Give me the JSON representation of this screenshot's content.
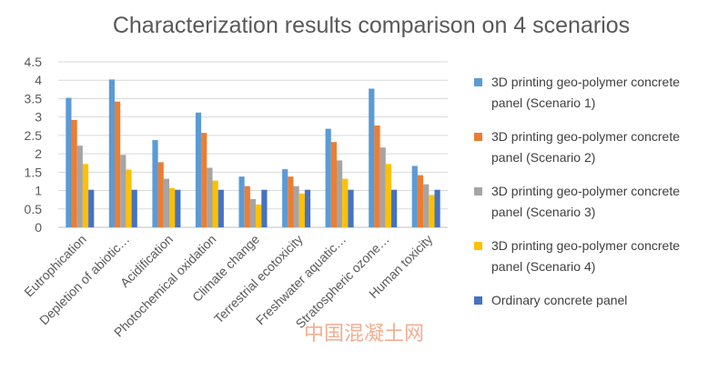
{
  "chart_data": {
    "type": "bar",
    "title": "Characterization results comparison on 4 scenarios",
    "categories": [
      "Eutrophication",
      "Depletion of abiotic…",
      "Acidification",
      "Photochemical oxidation",
      "Climate change",
      "Terrestrial ecotoxicity",
      "Freshwater aquatic…",
      "Stratospheric ozone…",
      "Human toxicity"
    ],
    "y_ticks": [
      "0",
      "0.5",
      "1",
      "1.5",
      "2",
      "2.5",
      "3",
      "3.5",
      "4",
      "4.5"
    ],
    "ylim": [
      0,
      4.5
    ],
    "grid": true,
    "legend_position": "right",
    "series": [
      {
        "name": "3D printing geo-polymer concrete panel (Scenario 1)",
        "name_lines": [
          "3D printing geo-polymer concrete",
          "panel (Scenario 1)"
        ],
        "color": "#5b9bd5",
        "values": [
          3.52,
          4.02,
          2.37,
          3.12,
          1.38,
          1.58,
          2.68,
          3.77,
          1.67
        ]
      },
      {
        "name": "3D printing geo-polymer concrete panel (Scenario 2)",
        "name_lines": [
          "3D printing geo-polymer concrete",
          "panel (Scenario 2)"
        ],
        "color": "#ed7d31",
        "values": [
          2.92,
          3.42,
          1.77,
          2.57,
          1.12,
          1.38,
          2.32,
          2.77,
          1.42
        ]
      },
      {
        "name": "3D printing geo-polymer concrete panel (Scenario 3)",
        "name_lines": [
          "3D printing geo-polymer concrete",
          "panel (Scenario 3)"
        ],
        "color": "#a5a5a5",
        "values": [
          2.22,
          1.97,
          1.32,
          1.62,
          0.77,
          1.12,
          1.82,
          2.17,
          1.17
        ]
      },
      {
        "name": "3D printing geo-polymer concrete panel (Scenario 4)",
        "name_lines": [
          "3D printing geo-polymer concrete",
          "panel (Scenario 4)"
        ],
        "color": "#ffc000",
        "values": [
          1.72,
          1.57,
          1.07,
          1.27,
          0.62,
          0.92,
          1.32,
          1.72,
          0.88
        ]
      },
      {
        "name": "Ordinary concrete panel",
        "name_lines": [
          "Ordinary concrete panel"
        ],
        "color": "#4472c4",
        "values": [
          1.02,
          1.02,
          1.02,
          1.02,
          1.02,
          1.02,
          1.02,
          1.02,
          1.02
        ]
      }
    ]
  },
  "watermark": "中国混凝土网"
}
